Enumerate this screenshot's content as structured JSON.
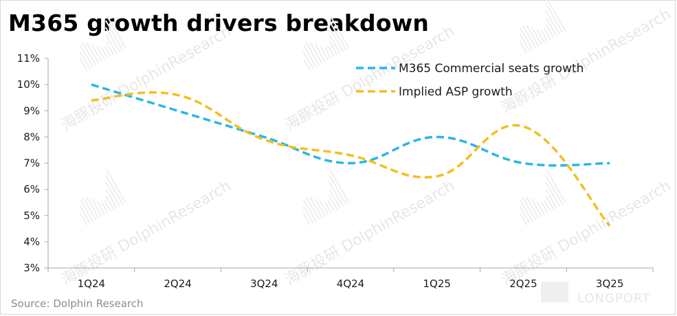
{
  "title": "M365 growth drivers breakdown",
  "source": "Source: Dolphin Research",
  "watermark": {
    "text": "海豚投研 DolphinResearch",
    "brand": "LONGPORT"
  },
  "colors": {
    "series1": "#29b5e8",
    "series2": "#f5bd1f",
    "axis": "#a6a6a6"
  },
  "chart_data": {
    "type": "line",
    "title": "M365 growth drivers breakdown",
    "categories": [
      "1Q24",
      "2Q24",
      "3Q24",
      "4Q24",
      "1Q25",
      "2Q25",
      "3Q25"
    ],
    "yticks": [
      "11%",
      "10%",
      "9%",
      "8%",
      "7%",
      "6%",
      "5%",
      "4%",
      "3%"
    ],
    "ylim": [
      3,
      11
    ],
    "legend_position": "top-right",
    "grid": false,
    "series": [
      {
        "name": "M365 Commercial seats growth",
        "values": [
          10.0,
          9.0,
          8.0,
          7.0,
          8.0,
          7.0,
          7.0
        ],
        "style": "dashed",
        "color": "#29b5e8"
      },
      {
        "name": "Implied ASP growth",
        "values": [
          9.4,
          9.6,
          7.9,
          7.3,
          6.5,
          8.4,
          4.6
        ],
        "style": "dashed",
        "color": "#f5bd1f"
      }
    ]
  }
}
